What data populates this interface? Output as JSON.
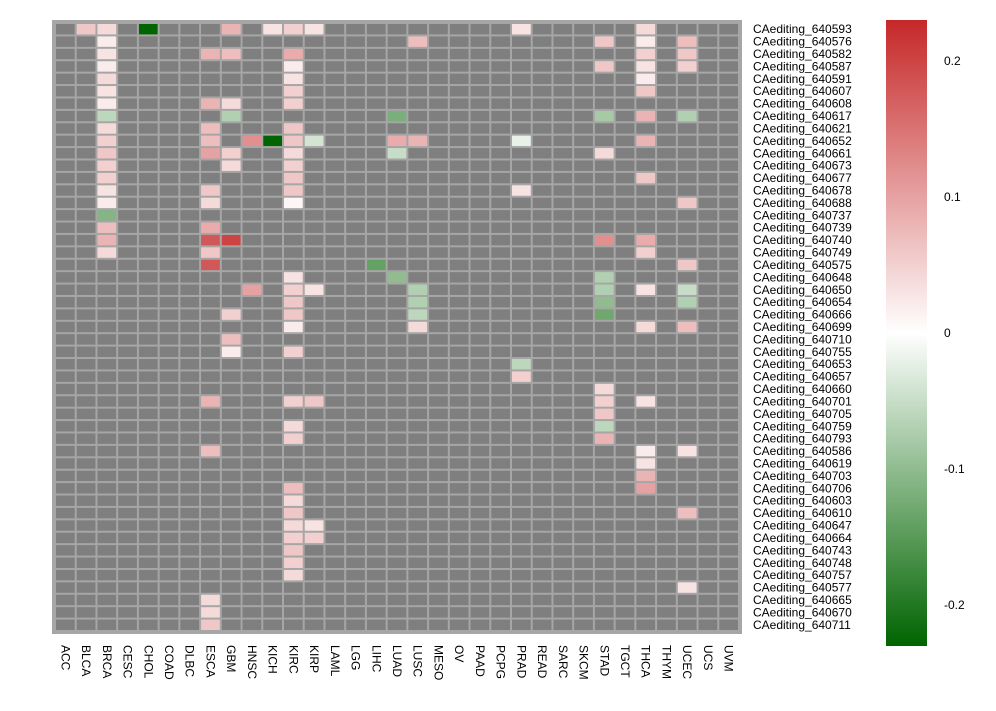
{
  "chart_data": {
    "type": "heatmap",
    "title": "",
    "na_color": "#7f7f7f",
    "color_scale": {
      "min": -0.23,
      "max": 0.23,
      "low_color": "#006400",
      "mid_color": "#ffffff",
      "high_color": "#c62828",
      "ticks": [
        0.2,
        0.1,
        0,
        -0.1,
        -0.2
      ],
      "tick_labels": [
        "0.2",
        "0.1",
        "0",
        "-0.1",
        "-0.2"
      ]
    },
    "columns": [
      "ACC",
      "BLCA",
      "BRCA",
      "CESC",
      "CHOL",
      "COAD",
      "DLBC",
      "ESCA",
      "GBM",
      "HNSC",
      "KICH",
      "KIRC",
      "KIRP",
      "LAML",
      "LGG",
      "LIHC",
      "LUAD",
      "LUSC",
      "MESO",
      "OV",
      "PAAD",
      "PCPG",
      "PRAD",
      "READ",
      "SARC",
      "SKCM",
      "STAD",
      "TGCT",
      "THCA",
      "THYM",
      "UCEC",
      "UCS",
      "UVM"
    ],
    "rows": [
      "CAediting_640593",
      "CAediting_640576",
      "CAediting_640582",
      "CAediting_640587",
      "CAediting_640591",
      "CAediting_640607",
      "CAediting_640608",
      "CAediting_640617",
      "CAediting_640621",
      "CAediting_640652",
      "CAediting_640661",
      "CAediting_640673",
      "CAediting_640677",
      "CAediting_640678",
      "CAediting_640688",
      "CAediting_640737",
      "CAediting_640739",
      "CAediting_640740",
      "CAediting_640749",
      "CAediting_640575",
      "CAediting_640648",
      "CAediting_640650",
      "CAediting_640654",
      "CAediting_640666",
      "CAediting_640699",
      "CAediting_640710",
      "CAediting_640755",
      "CAediting_640653",
      "CAediting_640657",
      "CAediting_640660",
      "CAediting_640701",
      "CAediting_640705",
      "CAediting_640759",
      "CAediting_640793",
      "CAediting_640586",
      "CAediting_640619",
      "CAediting_640703",
      "CAediting_640706",
      "CAediting_640603",
      "CAediting_640610",
      "CAediting_640647",
      "CAediting_640664",
      "CAediting_640743",
      "CAediting_640748",
      "CAediting_640757",
      "CAediting_640577",
      "CAediting_640665",
      "CAediting_640670",
      "CAediting_640711"
    ],
    "cells": [
      {
        "row": "CAediting_640593",
        "col": "BLCA",
        "value": 0.06
      },
      {
        "row": "CAediting_640593",
        "col": "BRCA",
        "value": 0.04
      },
      {
        "row": "CAediting_640593",
        "col": "CHOL",
        "value": -0.23
      },
      {
        "row": "CAediting_640593",
        "col": "GBM",
        "value": 0.08
      },
      {
        "row": "CAediting_640593",
        "col": "KICH",
        "value": 0.03
      },
      {
        "row": "CAediting_640593",
        "col": "KIRC",
        "value": 0.05
      },
      {
        "row": "CAediting_640593",
        "col": "KIRP",
        "value": 0.03
      },
      {
        "row": "CAediting_640593",
        "col": "PRAD",
        "value": 0.03
      },
      {
        "row": "CAediting_640593",
        "col": "THCA",
        "value": 0.04
      },
      {
        "row": "CAediting_640576",
        "col": "BRCA",
        "value": 0.02
      },
      {
        "row": "CAediting_640576",
        "col": "LUSC",
        "value": 0.07
      },
      {
        "row": "CAediting_640576",
        "col": "STAD",
        "value": 0.06
      },
      {
        "row": "CAediting_640576",
        "col": "THCA",
        "value": 0.02
      },
      {
        "row": "CAediting_640576",
        "col": "UCEC",
        "value": 0.07
      },
      {
        "row": "CAediting_640582",
        "col": "BRCA",
        "value": 0.03
      },
      {
        "row": "CAediting_640582",
        "col": "ESCA",
        "value": 0.08
      },
      {
        "row": "CAediting_640582",
        "col": "GBM",
        "value": 0.07
      },
      {
        "row": "CAediting_640582",
        "col": "KIRC",
        "value": 0.09
      },
      {
        "row": "CAediting_640582",
        "col": "THCA",
        "value": 0.05
      },
      {
        "row": "CAediting_640582",
        "col": "UCEC",
        "value": 0.06
      },
      {
        "row": "CAediting_640587",
        "col": "BRCA",
        "value": 0.02
      },
      {
        "row": "CAediting_640587",
        "col": "KIRC",
        "value": 0.02
      },
      {
        "row": "CAediting_640587",
        "col": "STAD",
        "value": 0.06
      },
      {
        "row": "CAediting_640587",
        "col": "THCA",
        "value": 0.03
      },
      {
        "row": "CAediting_640587",
        "col": "UCEC",
        "value": 0.05
      },
      {
        "row": "CAediting_640591",
        "col": "BRCA",
        "value": 0.04
      },
      {
        "row": "CAediting_640591",
        "col": "KIRC",
        "value": 0.03
      },
      {
        "row": "CAediting_640591",
        "col": "THCA",
        "value": 0.02
      },
      {
        "row": "CAediting_640607",
        "col": "BRCA",
        "value": 0.03
      },
      {
        "row": "CAediting_640607",
        "col": "KIRC",
        "value": 0.05
      },
      {
        "row": "CAediting_640607",
        "col": "THCA",
        "value": 0.06
      },
      {
        "row": "CAediting_640608",
        "col": "BRCA",
        "value": 0.02
      },
      {
        "row": "CAediting_640608",
        "col": "ESCA",
        "value": 0.08
      },
      {
        "row": "CAediting_640608",
        "col": "GBM",
        "value": 0.04
      },
      {
        "row": "CAediting_640608",
        "col": "KIRC",
        "value": 0.05
      },
      {
        "row": "CAediting_640617",
        "col": "BRCA",
        "value": -0.06
      },
      {
        "row": "CAediting_640617",
        "col": "GBM",
        "value": -0.07
      },
      {
        "row": "CAediting_640617",
        "col": "LUAD",
        "value": -0.12
      },
      {
        "row": "CAediting_640617",
        "col": "STAD",
        "value": -0.08
      },
      {
        "row": "CAediting_640617",
        "col": "THCA",
        "value": 0.08
      },
      {
        "row": "CAediting_640617",
        "col": "UCEC",
        "value": -0.07
      },
      {
        "row": "CAediting_640621",
        "col": "BRCA",
        "value": 0.04
      },
      {
        "row": "CAediting_640621",
        "col": "ESCA",
        "value": 0.07
      },
      {
        "row": "CAediting_640621",
        "col": "KIRC",
        "value": 0.06
      },
      {
        "row": "CAediting_640652",
        "col": "BRCA",
        "value": 0.05
      },
      {
        "row": "CAediting_640652",
        "col": "ESCA",
        "value": 0.07
      },
      {
        "row": "CAediting_640652",
        "col": "HNSC",
        "value": 0.12
      },
      {
        "row": "CAediting_640652",
        "col": "KICH",
        "value": -0.23
      },
      {
        "row": "CAediting_640652",
        "col": "KIRC",
        "value": 0.06
      },
      {
        "row": "CAediting_640652",
        "col": "KIRP",
        "value": -0.04
      },
      {
        "row": "CAediting_640652",
        "col": "LUAD",
        "value": 0.09
      },
      {
        "row": "CAediting_640652",
        "col": "LUSC",
        "value": 0.08
      },
      {
        "row": "CAediting_640652",
        "col": "PRAD",
        "value": -0.02
      },
      {
        "row": "CAediting_640652",
        "col": "THCA",
        "value": 0.08
      },
      {
        "row": "CAediting_640661",
        "col": "BRCA",
        "value": 0.06
      },
      {
        "row": "CAediting_640661",
        "col": "ESCA",
        "value": 0.1
      },
      {
        "row": "CAediting_640661",
        "col": "GBM",
        "value": 0.05
      },
      {
        "row": "CAediting_640661",
        "col": "KIRC",
        "value": 0.04
      },
      {
        "row": "CAediting_640661",
        "col": "LUAD",
        "value": -0.05
      },
      {
        "row": "CAediting_640661",
        "col": "STAD",
        "value": 0.04
      },
      {
        "row": "CAediting_640673",
        "col": "BRCA",
        "value": 0.05
      },
      {
        "row": "CAediting_640673",
        "col": "GBM",
        "value": 0.04
      },
      {
        "row": "CAediting_640673",
        "col": "KIRC",
        "value": 0.05
      },
      {
        "row": "CAediting_640677",
        "col": "BRCA",
        "value": 0.05
      },
      {
        "row": "CAediting_640677",
        "col": "KIRC",
        "value": 0.06
      },
      {
        "row": "CAediting_640677",
        "col": "THCA",
        "value": 0.06
      },
      {
        "row": "CAediting_640678",
        "col": "BRCA",
        "value": 0.03
      },
      {
        "row": "CAediting_640678",
        "col": "ESCA",
        "value": 0.06
      },
      {
        "row": "CAediting_640678",
        "col": "KIRC",
        "value": 0.06
      },
      {
        "row": "CAediting_640678",
        "col": "PRAD",
        "value": 0.03
      },
      {
        "row": "CAediting_640688",
        "col": "BRCA",
        "value": 0.02
      },
      {
        "row": "CAediting_640688",
        "col": "ESCA",
        "value": 0.04
      },
      {
        "row": "CAediting_640688",
        "col": "KIRC",
        "value": 0.01
      },
      {
        "row": "CAediting_640688",
        "col": "UCEC",
        "value": 0.06
      },
      {
        "row": "CAediting_640737",
        "col": "BRCA",
        "value": -0.11
      },
      {
        "row": "CAediting_640739",
        "col": "BRCA",
        "value": 0.07
      },
      {
        "row": "CAediting_640739",
        "col": "ESCA",
        "value": 0.09
      },
      {
        "row": "CAediting_640740",
        "col": "BRCA",
        "value": 0.08
      },
      {
        "row": "CAediting_640740",
        "col": "ESCA",
        "value": 0.18
      },
      {
        "row": "CAediting_640740",
        "col": "GBM",
        "value": 0.2
      },
      {
        "row": "CAediting_640740",
        "col": "STAD",
        "value": 0.12
      },
      {
        "row": "CAediting_640740",
        "col": "THCA",
        "value": 0.09
      },
      {
        "row": "CAediting_640749",
        "col": "BRCA",
        "value": 0.04
      },
      {
        "row": "CAediting_640749",
        "col": "ESCA",
        "value": 0.06
      },
      {
        "row": "CAediting_640749",
        "col": "THCA",
        "value": 0.05
      },
      {
        "row": "CAediting_640575",
        "col": "ESCA",
        "value": 0.18
      },
      {
        "row": "CAediting_640575",
        "col": "LIHC",
        "value": -0.14
      },
      {
        "row": "CAediting_640575",
        "col": "UCEC",
        "value": 0.06
      },
      {
        "row": "CAediting_640648",
        "col": "KIRC",
        "value": 0.03
      },
      {
        "row": "CAediting_640648",
        "col": "LUAD",
        "value": -0.1
      },
      {
        "row": "CAediting_640648",
        "col": "STAD",
        "value": -0.07
      },
      {
        "row": "CAediting_640650",
        "col": "HNSC",
        "value": 0.1
      },
      {
        "row": "CAediting_640650",
        "col": "KIRC",
        "value": 0.05
      },
      {
        "row": "CAediting_640650",
        "col": "KIRP",
        "value": 0.03
      },
      {
        "row": "CAediting_640650",
        "col": "LUSC",
        "value": -0.07
      },
      {
        "row": "CAediting_640650",
        "col": "STAD",
        "value": -0.07
      },
      {
        "row": "CAediting_640650",
        "col": "THCA",
        "value": 0.03
      },
      {
        "row": "CAediting_640650",
        "col": "UCEC",
        "value": -0.05
      },
      {
        "row": "CAediting_640654",
        "col": "KIRC",
        "value": 0.06
      },
      {
        "row": "CAediting_640654",
        "col": "LUSC",
        "value": -0.07
      },
      {
        "row": "CAediting_640654",
        "col": "STAD",
        "value": -0.1
      },
      {
        "row": "CAediting_640654",
        "col": "UCEC",
        "value": -0.07
      },
      {
        "row": "CAediting_640666",
        "col": "GBM",
        "value": 0.05
      },
      {
        "row": "CAediting_640666",
        "col": "KIRC",
        "value": 0.06
      },
      {
        "row": "CAediting_640666",
        "col": "LUSC",
        "value": -0.06
      },
      {
        "row": "CAediting_640666",
        "col": "STAD",
        "value": -0.13
      },
      {
        "row": "CAediting_640699",
        "col": "KIRC",
        "value": 0.02
      },
      {
        "row": "CAediting_640699",
        "col": "LUSC",
        "value": 0.04
      },
      {
        "row": "CAediting_640699",
        "col": "THCA",
        "value": 0.04
      },
      {
        "row": "CAediting_640699",
        "col": "UCEC",
        "value": 0.07
      },
      {
        "row": "CAediting_640710",
        "col": "GBM",
        "value": 0.07
      },
      {
        "row": "CAediting_640755",
        "col": "GBM",
        "value": 0.02
      },
      {
        "row": "CAediting_640755",
        "col": "KIRC",
        "value": 0.05
      },
      {
        "row": "CAediting_640653",
        "col": "PRAD",
        "value": -0.06
      },
      {
        "row": "CAediting_640657",
        "col": "PRAD",
        "value": 0.05
      },
      {
        "row": "CAediting_640660",
        "col": "STAD",
        "value": 0.04
      },
      {
        "row": "CAediting_640701",
        "col": "ESCA",
        "value": 0.08
      },
      {
        "row": "CAediting_640701",
        "col": "KIRC",
        "value": 0.05
      },
      {
        "row": "CAediting_640701",
        "col": "KIRP",
        "value": 0.06
      },
      {
        "row": "CAediting_640701",
        "col": "STAD",
        "value": 0.05
      },
      {
        "row": "CAediting_640701",
        "col": "THCA",
        "value": 0.03
      },
      {
        "row": "CAediting_640705",
        "col": "STAD",
        "value": 0.06
      },
      {
        "row": "CAediting_640759",
        "col": "KIRC",
        "value": 0.04
      },
      {
        "row": "CAediting_640759",
        "col": "STAD",
        "value": -0.06
      },
      {
        "row": "CAediting_640793",
        "col": "KIRC",
        "value": 0.05
      },
      {
        "row": "CAediting_640793",
        "col": "STAD",
        "value": 0.08
      },
      {
        "row": "CAediting_640586",
        "col": "ESCA",
        "value": 0.07
      },
      {
        "row": "CAediting_640586",
        "col": "THCA",
        "value": 0.02
      },
      {
        "row": "CAediting_640586",
        "col": "UCEC",
        "value": 0.03
      },
      {
        "row": "CAediting_640619",
        "col": "THCA",
        "value": 0.03
      },
      {
        "row": "CAediting_640703",
        "col": "THCA",
        "value": 0.08
      },
      {
        "row": "CAediting_640706",
        "col": "KIRC",
        "value": 0.07
      },
      {
        "row": "CAediting_640706",
        "col": "THCA",
        "value": 0.1
      },
      {
        "row": "CAediting_640603",
        "col": "KIRC",
        "value": 0.04
      },
      {
        "row": "CAediting_640610",
        "col": "KIRC",
        "value": 0.06
      },
      {
        "row": "CAediting_640610",
        "col": "UCEC",
        "value": 0.07
      },
      {
        "row": "CAediting_640647",
        "col": "KIRC",
        "value": 0.04
      },
      {
        "row": "CAediting_640647",
        "col": "KIRP",
        "value": 0.03
      },
      {
        "row": "CAediting_640664",
        "col": "KIRC",
        "value": 0.05
      },
      {
        "row": "CAediting_640664",
        "col": "KIRP",
        "value": 0.05
      },
      {
        "row": "CAediting_640743",
        "col": "KIRC",
        "value": 0.06
      },
      {
        "row": "CAediting_640748",
        "col": "KIRC",
        "value": 0.05
      },
      {
        "row": "CAediting_640757",
        "col": "KIRC",
        "value": 0.04
      },
      {
        "row": "CAediting_640577",
        "col": "UCEC",
        "value": 0.03
      },
      {
        "row": "CAediting_640665",
        "col": "ESCA",
        "value": 0.04
      },
      {
        "row": "CAediting_640670",
        "col": "ESCA",
        "value": 0.04
      },
      {
        "row": "CAediting_640711",
        "col": "ESCA",
        "value": 0.06
      }
    ]
  }
}
